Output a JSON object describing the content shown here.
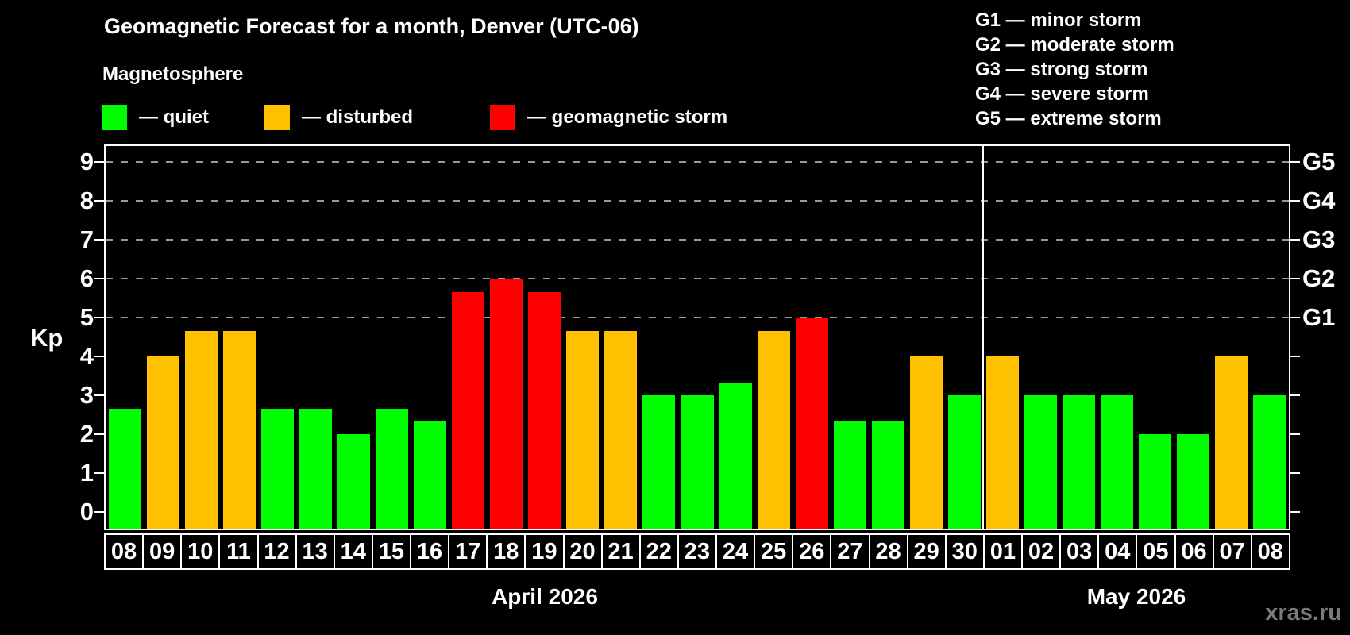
{
  "header": {
    "title": "Geomagnetic Forecast for a month, Denver (UTC-06)",
    "subtitle": "Magnetosphere"
  },
  "legend": {
    "items": [
      {
        "name": "quiet",
        "label": "— quiet",
        "color": "#00ff00"
      },
      {
        "name": "disturbed",
        "label": "— disturbed",
        "color": "#ffc000"
      },
      {
        "name": "storm",
        "label": "— geomagnetic storm",
        "color": "#ff0000"
      }
    ]
  },
  "g_scale_legend": [
    "G1 — minor storm",
    "G2 — moderate storm",
    "G3 — strong storm",
    "G4 — severe storm",
    "G5 — extreme storm"
  ],
  "watermark": "xras.ru",
  "chart_data": {
    "type": "bar",
    "title": "Geomagnetic Forecast for a month, Denver (UTC-06)",
    "xlabel": "",
    "ylabel": "Kp",
    "ylim": [
      0,
      9
    ],
    "yticks": [
      0,
      1,
      2,
      3,
      4,
      5,
      6,
      7,
      8,
      9
    ],
    "gridlines_at_kp": [
      5,
      6,
      7,
      8,
      9
    ],
    "grid": "dashed",
    "right_axis": [
      {
        "kp": 5,
        "label": "G1"
      },
      {
        "kp": 6,
        "label": "G2"
      },
      {
        "kp": 7,
        "label": "G3"
      },
      {
        "kp": 8,
        "label": "G4"
      },
      {
        "kp": 9,
        "label": "G5"
      }
    ],
    "level_colors": {
      "quiet": "#00ff00",
      "disturbed": "#ffc000",
      "storm": "#ff0000"
    },
    "months": [
      {
        "label": "April 2026",
        "days": [
          {
            "day": "08",
            "kp": 2.67,
            "level": "quiet"
          },
          {
            "day": "09",
            "kp": 4.0,
            "level": "disturbed"
          },
          {
            "day": "10",
            "kp": 4.67,
            "level": "disturbed"
          },
          {
            "day": "11",
            "kp": 4.67,
            "level": "disturbed"
          },
          {
            "day": "12",
            "kp": 2.67,
            "level": "quiet"
          },
          {
            "day": "13",
            "kp": 2.67,
            "level": "quiet"
          },
          {
            "day": "14",
            "kp": 2.0,
            "level": "quiet"
          },
          {
            "day": "15",
            "kp": 2.67,
            "level": "quiet"
          },
          {
            "day": "16",
            "kp": 2.33,
            "level": "quiet"
          },
          {
            "day": "17",
            "kp": 5.67,
            "level": "storm"
          },
          {
            "day": "18",
            "kp": 6.0,
            "level": "storm"
          },
          {
            "day": "19",
            "kp": 5.67,
            "level": "storm"
          },
          {
            "day": "20",
            "kp": 4.67,
            "level": "disturbed"
          },
          {
            "day": "21",
            "kp": 4.67,
            "level": "disturbed"
          },
          {
            "day": "22",
            "kp": 3.0,
            "level": "quiet"
          },
          {
            "day": "23",
            "kp": 3.0,
            "level": "quiet"
          },
          {
            "day": "24",
            "kp": 3.33,
            "level": "quiet"
          },
          {
            "day": "25",
            "kp": 4.67,
            "level": "disturbed"
          },
          {
            "day": "26",
            "kp": 5.0,
            "level": "storm"
          },
          {
            "day": "27",
            "kp": 2.33,
            "level": "quiet"
          },
          {
            "day": "28",
            "kp": 2.33,
            "level": "quiet"
          },
          {
            "day": "29",
            "kp": 4.0,
            "level": "disturbed"
          },
          {
            "day": "30",
            "kp": 3.0,
            "level": "quiet"
          }
        ]
      },
      {
        "label": "May 2026",
        "days": [
          {
            "day": "01",
            "kp": 4.0,
            "level": "disturbed"
          },
          {
            "day": "02",
            "kp": 3.0,
            "level": "quiet"
          },
          {
            "day": "03",
            "kp": 3.0,
            "level": "quiet"
          },
          {
            "day": "04",
            "kp": 3.0,
            "level": "quiet"
          },
          {
            "day": "05",
            "kp": 2.0,
            "level": "quiet"
          },
          {
            "day": "06",
            "kp": 2.0,
            "level": "quiet"
          },
          {
            "day": "07",
            "kp": 4.0,
            "level": "disturbed"
          },
          {
            "day": "08",
            "kp": 3.0,
            "level": "quiet"
          }
        ]
      }
    ]
  }
}
